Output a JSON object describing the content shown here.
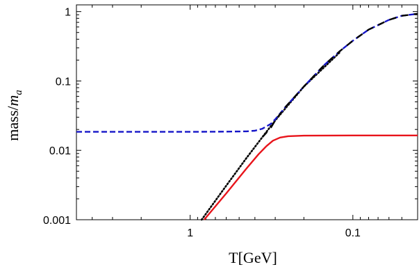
{
  "chart_data": {
    "type": "line",
    "xlabel": "T[GeV]",
    "ylabel_main": "mass",
    "ylabel_sep": "/",
    "ylabel_italic": "m",
    "ylabel_sub": "a",
    "x_scale": "log",
    "x_reversed": true,
    "y_scale": "log",
    "xlim": [
      5,
      0.04
    ],
    "ylim": [
      0.001,
      1.25
    ],
    "grid": false,
    "x_ticks": [
      {
        "value": 1,
        "label": "1"
      },
      {
        "value": 0.1,
        "label": "0.1"
      }
    ],
    "y_ticks": [
      {
        "value": 1,
        "label": "1"
      },
      {
        "value": 0.1,
        "label": "0.1"
      },
      {
        "value": 0.01,
        "label": "0.01"
      },
      {
        "value": 0.001,
        "label": "0.001"
      }
    ],
    "series": [
      {
        "style": "solid",
        "color": "#e8141b",
        "x": [
          0.82,
          0.6,
          0.45,
          0.38,
          0.34,
          0.31,
          0.28,
          0.25,
          0.2,
          0.1,
          0.04
        ],
        "y": [
          0.001,
          0.0024,
          0.0055,
          0.0088,
          0.0115,
          0.0138,
          0.0153,
          0.016,
          0.0163,
          0.0164,
          0.0164
        ]
      },
      {
        "style": "dotted",
        "color": "#000000",
        "x": [
          0.85,
          0.6,
          0.45,
          0.36,
          0.3,
          0.2,
          0.12
        ],
        "y": [
          0.001,
          0.0031,
          0.0078,
          0.0155,
          0.027,
          0.083,
          0.26
        ]
      },
      {
        "style": "dashed",
        "color": "#1515c8",
        "x": [
          5,
          2,
          1,
          0.6,
          0.45,
          0.4,
          0.36,
          0.32,
          0.3,
          0.26,
          0.2,
          0.15,
          0.12,
          0.1,
          0.08,
          0.06,
          0.05,
          0.04
        ],
        "y": [
          0.0185,
          0.0185,
          0.0185,
          0.0186,
          0.0188,
          0.0192,
          0.0205,
          0.024,
          0.028,
          0.042,
          0.083,
          0.17,
          0.27,
          0.38,
          0.55,
          0.76,
          0.87,
          0.93
        ]
      },
      {
        "style": "longdash",
        "color": "#000000",
        "x": [
          0.36,
          0.32,
          0.3,
          0.26,
          0.2,
          0.15,
          0.12,
          0.1,
          0.08,
          0.06,
          0.05,
          0.04
        ],
        "y": [
          0.0155,
          0.021,
          0.027,
          0.042,
          0.083,
          0.17,
          0.27,
          0.38,
          0.55,
          0.76,
          0.87,
          0.93
        ]
      }
    ]
  }
}
